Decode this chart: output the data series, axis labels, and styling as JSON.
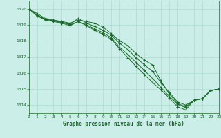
{
  "title": "Graphe pression niveau de la mer (hPa)",
  "bg_color": "#cceee8",
  "grid_color": "#aaddcc",
  "line_color": "#1a6b2a",
  "xlim": [
    0,
    23
  ],
  "ylim": [
    1013.5,
    1020.5
  ],
  "xticks": [
    0,
    1,
    2,
    3,
    4,
    5,
    6,
    7,
    8,
    9,
    10,
    11,
    12,
    13,
    14,
    15,
    16,
    17,
    18,
    19,
    20,
    21,
    22,
    23
  ],
  "yticks": [
    1014,
    1015,
    1016,
    1017,
    1018,
    1019,
    1020
  ],
  "series": [
    [
      1020.0,
      1019.7,
      1019.4,
      1019.3,
      1019.2,
      1019.1,
      1019.3,
      1019.2,
      1019.1,
      1018.85,
      1018.45,
      1018.0,
      1017.7,
      1017.2,
      1016.8,
      1016.5,
      1015.5,
      1014.7,
      1014.1,
      1013.9,
      1014.3,
      1014.4,
      1014.9,
      1015.0
    ],
    [
      1020.0,
      1019.6,
      1019.35,
      1019.25,
      1019.15,
      1019.05,
      1019.4,
      1019.1,
      1018.9,
      1018.65,
      1018.35,
      1017.85,
      1017.45,
      1016.95,
      1016.5,
      1016.1,
      1015.4,
      1014.8,
      1014.2,
      1014.0,
      1014.3,
      1014.4,
      1014.9,
      1015.0
    ],
    [
      1020.0,
      1019.6,
      1019.35,
      1019.25,
      1019.15,
      1019.0,
      1019.2,
      1019.0,
      1018.75,
      1018.5,
      1018.2,
      1017.6,
      1017.15,
      1016.65,
      1016.15,
      1015.65,
      1015.1,
      1014.55,
      1014.05,
      1013.85,
      1014.3,
      1014.4,
      1014.9,
      1015.0
    ],
    [
      1020.0,
      1019.55,
      1019.3,
      1019.2,
      1019.1,
      1018.95,
      1019.2,
      1018.95,
      1018.65,
      1018.4,
      1018.1,
      1017.5,
      1016.95,
      1016.4,
      1015.9,
      1015.4,
      1014.95,
      1014.45,
      1013.9,
      1013.7,
      1014.3,
      1014.4,
      1014.9,
      1015.0
    ]
  ]
}
